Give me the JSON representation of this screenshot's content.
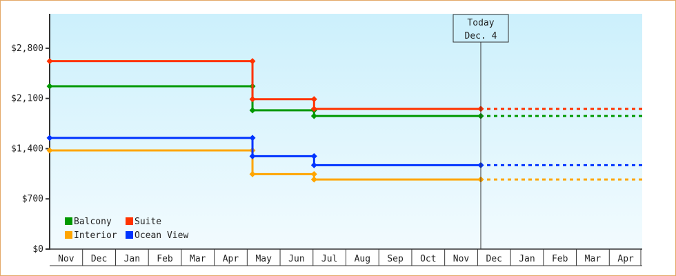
{
  "chart_data": {
    "type": "line",
    "step": true,
    "title": "",
    "xlabel": "",
    "ylabel": "",
    "ylim": [
      0,
      3280
    ],
    "y_ticks": [
      0,
      700,
      1400,
      2100,
      2800
    ],
    "y_tick_labels": [
      "$0",
      "$700",
      "$1,400",
      "$2,100",
      "$2,800"
    ],
    "x_ticks": [
      "Nov",
      "Dec",
      "Jan",
      "Feb",
      "Mar",
      "Apr",
      "May",
      "Jun",
      "Jul",
      "Aug",
      "Sep",
      "Oct",
      "Nov",
      "Dec",
      "Jan",
      "Feb",
      "Mar",
      "Apr"
    ],
    "grid": false,
    "legend_placement": "bottom-left",
    "today_marker": {
      "line1": "Today",
      "line2": "Dec. 4",
      "date": "Dec 4"
    },
    "projection": "dashed flat line after today",
    "background": {
      "top": "#ccf0fc",
      "bottom": "#f2fbfe"
    },
    "series": [
      {
        "name": "Balcony",
        "color": "#009900",
        "points": [
          [
            "Nov 1",
            2270
          ],
          [
            "May 6",
            1935
          ],
          [
            "Jul 2",
            1855
          ],
          [
            "Dec 4",
            1855
          ]
        ]
      },
      {
        "name": "Suite",
        "color": "#ff3300",
        "points": [
          [
            "Nov 1",
            2620
          ],
          [
            "May 6",
            2090
          ],
          [
            "Jul 2",
            1955
          ],
          [
            "Dec 4",
            1955
          ]
        ]
      },
      {
        "name": "Interior",
        "color": "#ffa500",
        "points": [
          [
            "Nov 1",
            1375
          ],
          [
            "May 6",
            1045
          ],
          [
            "Jul 2",
            970
          ],
          [
            "Dec 4",
            970
          ]
        ]
      },
      {
        "name": "Ocean View",
        "color": "#0033ff",
        "points": [
          [
            "Nov 1",
            1550
          ],
          [
            "May 6",
            1295
          ],
          [
            "Jul 2",
            1170
          ],
          [
            "Dec 4",
            1170
          ]
        ]
      }
    ]
  }
}
